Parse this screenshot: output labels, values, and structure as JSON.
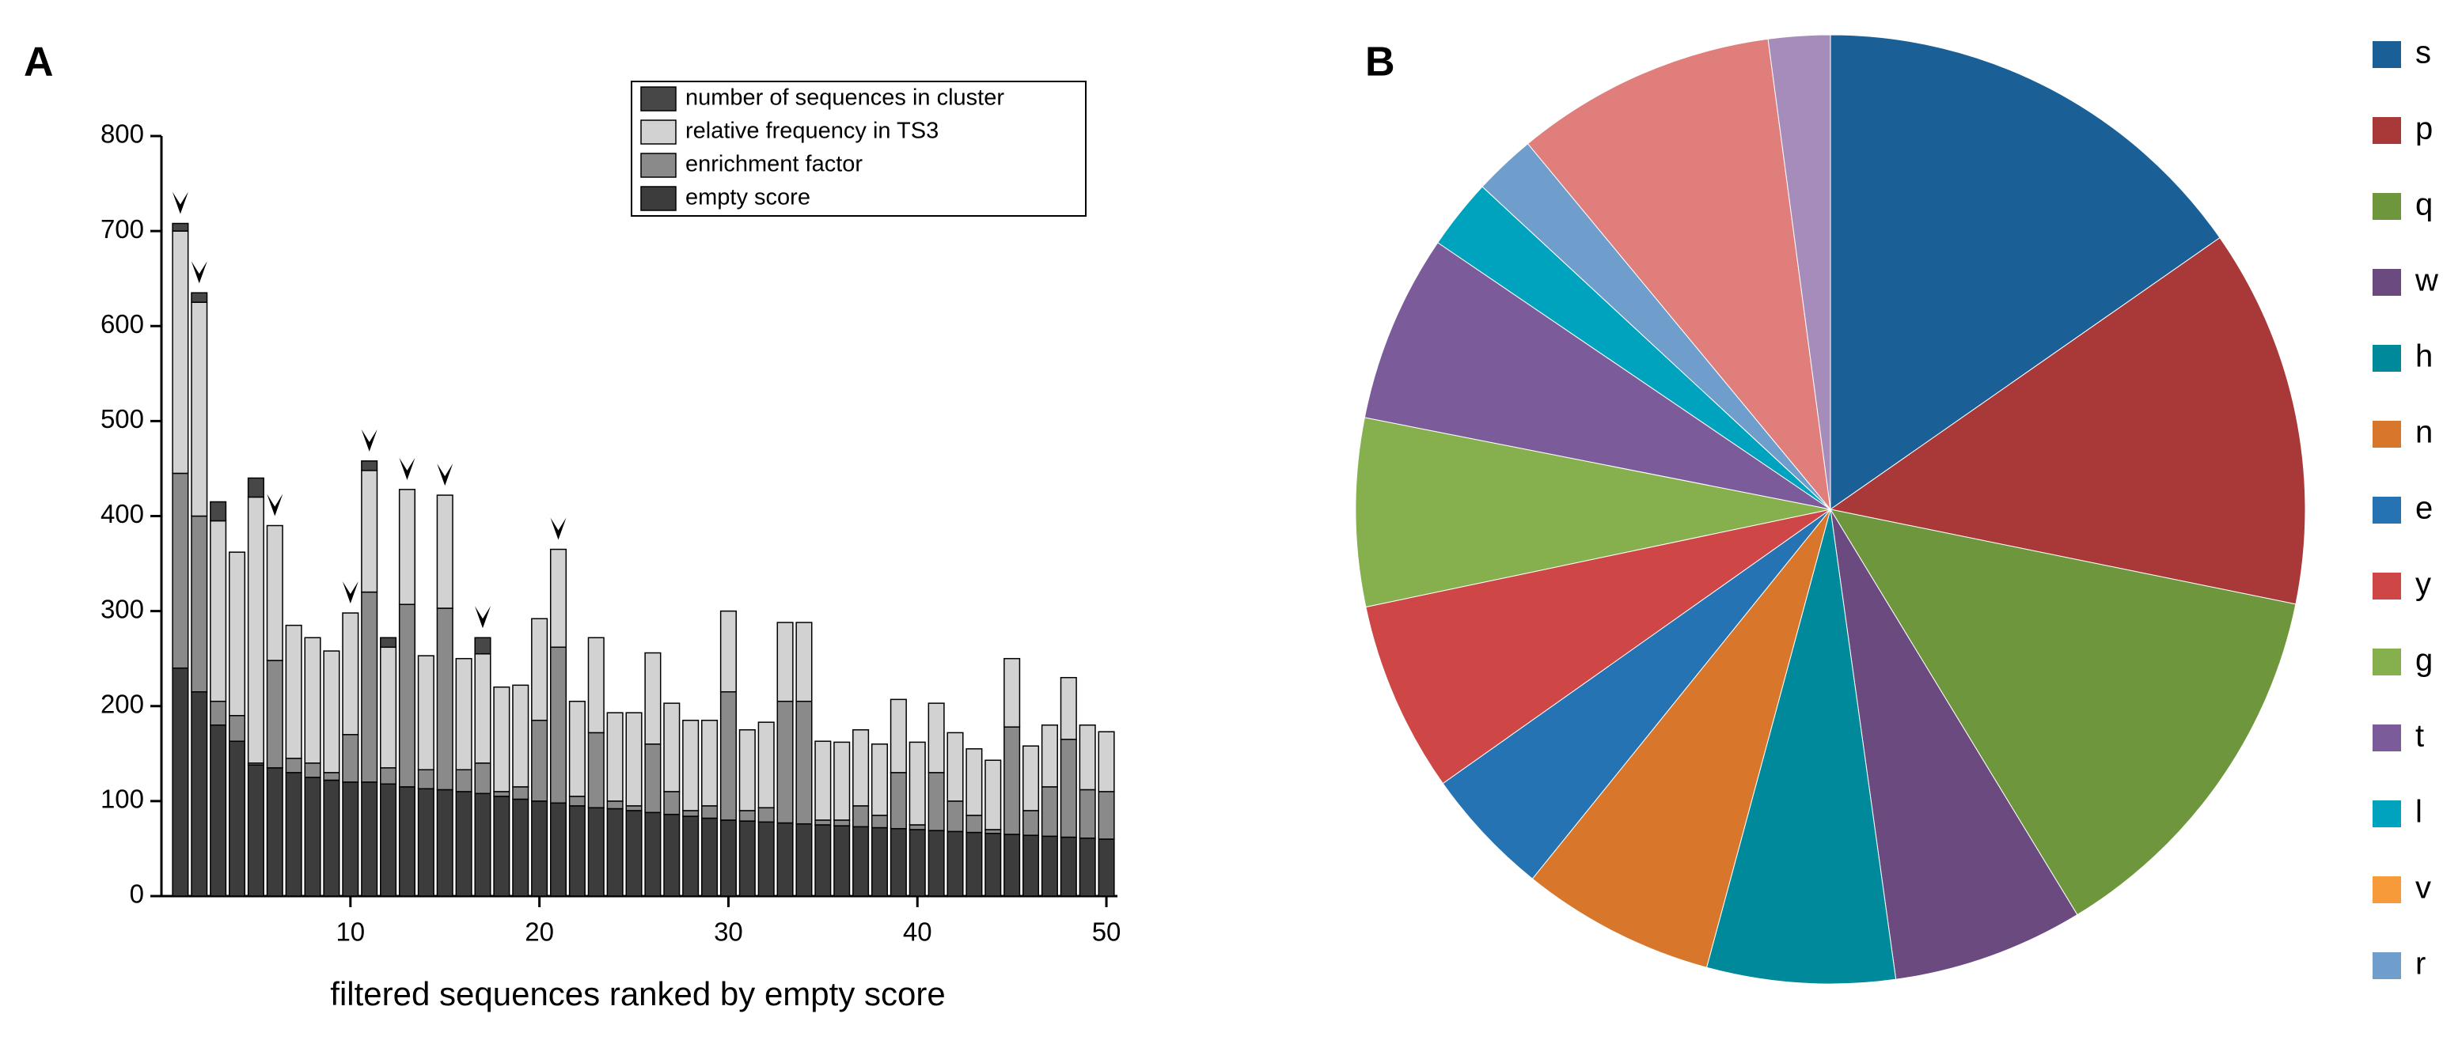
{
  "chart_data": [
    {
      "type": "bar",
      "stacked": true,
      "panel_label": "A",
      "x_label": "filtered sequences ranked by empty score",
      "x": [
        1,
        2,
        3,
        4,
        5,
        6,
        7,
        8,
        9,
        10,
        11,
        12,
        13,
        14,
        15,
        16,
        17,
        18,
        19,
        20,
        21,
        22,
        23,
        24,
        25,
        26,
        27,
        28,
        29,
        30,
        31,
        32,
        33,
        34,
        35,
        36,
        37,
        38,
        39,
        40,
        41,
        42,
        43,
        44,
        45,
        46,
        47,
        48,
        49,
        50
      ],
      "xlim": [
        0,
        50.5
      ],
      "xticks": [
        10,
        20,
        30,
        40,
        50
      ],
      "ylim": [
        0,
        800
      ],
      "yticks": [
        0,
        100,
        200,
        300,
        400,
        500,
        600,
        700,
        800
      ],
      "highlighted": [
        1,
        2,
        6,
        10,
        11,
        13,
        15,
        17,
        21
      ],
      "series": [
        {
          "name": "number of sequences in cluster",
          "color": "#474747",
          "values": [
            8,
            10,
            20,
            0,
            20,
            0,
            0,
            0,
            0,
            0,
            10,
            10,
            0,
            0,
            0,
            0,
            17,
            0,
            0,
            0,
            0,
            0,
            0,
            0,
            0,
            0,
            0,
            0,
            0,
            0,
            0,
            0,
            0,
            0,
            0,
            0,
            0,
            0,
            0,
            0,
            0,
            0,
            0,
            0,
            0,
            0,
            0,
            0,
            0,
            0
          ]
        },
        {
          "name": "relative frequency in TS3",
          "color": "#d2d2d2",
          "values": [
            255,
            225,
            190,
            172,
            280,
            142,
            140,
            132,
            128,
            128,
            128,
            127,
            121,
            120,
            119,
            117,
            115,
            110,
            107,
            107,
            103,
            100,
            100,
            93,
            98,
            96,
            93,
            95,
            90,
            85,
            85,
            90,
            83,
            83,
            83,
            82,
            80,
            75,
            77,
            87,
            73,
            72,
            70,
            73,
            72,
            68,
            65,
            65,
            68,
            63
          ]
        },
        {
          "name": "enrichment factor",
          "color": "#8a8a8a",
          "values": [
            205,
            185,
            25,
            27,
            2,
            113,
            15,
            15,
            8,
            50,
            200,
            17,
            192,
            20,
            191,
            23,
            32,
            5,
            13,
            85,
            164,
            10,
            79,
            8,
            5,
            72,
            24,
            6,
            13,
            135,
            11,
            15,
            128,
            129,
            5,
            6,
            22,
            13,
            59,
            5,
            61,
            32,
            18,
            4,
            113,
            26,
            52,
            103,
            51,
            50
          ]
        },
        {
          "name": "empty score",
          "color": "#3c3c3c",
          "values": [
            240,
            215,
            180,
            163,
            138,
            135,
            130,
            125,
            122,
            120,
            120,
            118,
            115,
            113,
            112,
            110,
            108,
            105,
            102,
            100,
            98,
            95,
            93,
            92,
            90,
            88,
            86,
            84,
            82,
            80,
            79,
            78,
            77,
            76,
            75,
            74,
            73,
            72,
            71,
            70,
            69,
            68,
            67,
            66,
            65,
            64,
            63,
            62,
            61,
            60
          ]
        }
      ]
    },
    {
      "type": "pie",
      "panel_label": "B",
      "categories": [
        "s",
        "p",
        "q",
        "w",
        "h",
        "n",
        "e",
        "y",
        "g",
        "t",
        "l",
        "v",
        "r",
        null,
        null
      ],
      "values": [
        15.3,
        12.9,
        13.1,
        6.5,
        6.4,
        6.6,
        4.4,
        6.5,
        6.4,
        6.4,
        2.4,
        0,
        2.1,
        8.9,
        2.1
      ],
      "colors": [
        "#1a6096",
        "#a93838",
        "#6e963c",
        "#6b4a80",
        "#00899a",
        "#d8772b",
        "#2673b3",
        "#cf4646",
        "#86b04d",
        "#7c5b9b",
        "#00a3bd",
        "#f79b3a",
        "#6f9dcc",
        "#e07e7c",
        "#a68cba"
      ]
    }
  ]
}
